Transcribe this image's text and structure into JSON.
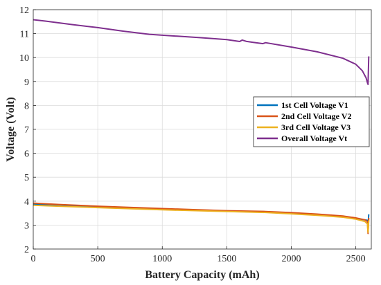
{
  "chart_data": {
    "type": "line",
    "title": "",
    "xlabel": "Battery Capacity (mAh)",
    "ylabel": "Voltage (Volt)",
    "xlim": [
      0,
      2620
    ],
    "ylim": [
      2,
      12
    ],
    "x_ticks": [
      "0",
      "500",
      "1000",
      "1500",
      "2000",
      "2500"
    ],
    "y_ticks": [
      "2",
      "3",
      "4",
      "5",
      "6",
      "7",
      "8",
      "9",
      "10",
      "11",
      "12"
    ],
    "grid": true,
    "legend_position": "right",
    "series": [
      {
        "name": "1st Cell Voltage V1",
        "color": "#0072BD",
        "x": [
          0,
          200,
          500,
          1000,
          1500,
          1800,
          2000,
          2200,
          2400,
          2500,
          2570,
          2590,
          2595,
          2600
        ],
        "y": [
          3.88,
          3.84,
          3.77,
          3.67,
          3.58,
          3.55,
          3.49,
          3.44,
          3.36,
          3.28,
          3.22,
          3.2,
          2.95,
          3.45
        ]
      },
      {
        "name": "2nd Cell Voltage V2",
        "color": "#D95319",
        "x": [
          0,
          200,
          500,
          1000,
          1500,
          1800,
          2000,
          2200,
          2400,
          2500,
          2570,
          2590,
          2595,
          2600
        ],
        "y": [
          3.92,
          3.86,
          3.79,
          3.69,
          3.6,
          3.57,
          3.52,
          3.46,
          3.38,
          3.3,
          3.22,
          3.15,
          2.65,
          3.3
        ]
      },
      {
        "name": "3rd Cell Voltage V3",
        "color": "#EDB120",
        "x": [
          0,
          200,
          500,
          1000,
          1500,
          1800,
          2000,
          2200,
          2400,
          2500,
          2570,
          2590,
          2595,
          2600
        ],
        "y": [
          3.83,
          3.79,
          3.73,
          3.64,
          3.57,
          3.53,
          3.47,
          3.41,
          3.33,
          3.25,
          3.15,
          3.05,
          2.7,
          3.2
        ]
      },
      {
        "name": "Overall Voltage Vt",
        "color": "#7E2F8E",
        "x": [
          0,
          100,
          300,
          500,
          700,
          900,
          1100,
          1300,
          1500,
          1600,
          1620,
          1650,
          1700,
          1780,
          1800,
          2000,
          2200,
          2400,
          2500,
          2550,
          2580,
          2590,
          2595,
          2600
        ],
        "y": [
          11.58,
          11.52,
          11.38,
          11.25,
          11.1,
          10.97,
          10.9,
          10.83,
          10.75,
          10.67,
          10.73,
          10.68,
          10.64,
          10.58,
          10.62,
          10.44,
          10.24,
          9.97,
          9.72,
          9.45,
          9.15,
          8.95,
          8.88,
          10.05
        ]
      }
    ]
  }
}
